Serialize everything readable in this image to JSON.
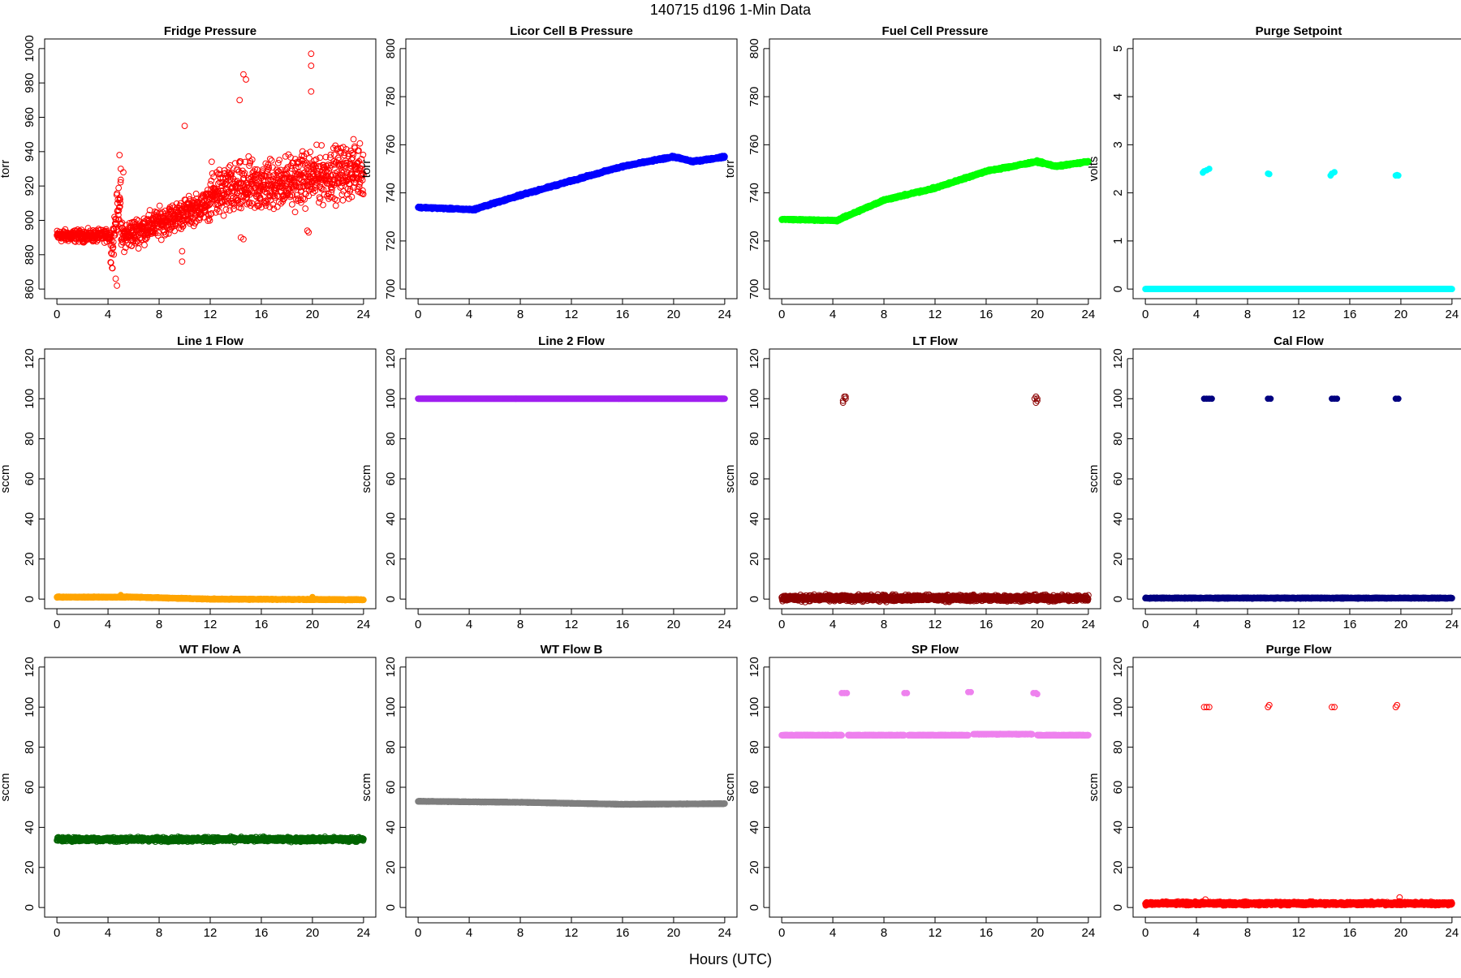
{
  "page": {
    "title": "140715   d196   1-Min Data",
    "xlabel": "Hours (UTC)"
  },
  "chart_data": [
    {
      "type": "scatter",
      "title": "Fridge Pressure",
      "ylabel": "torr",
      "xlim": [
        0,
        24
      ],
      "ylim": [
        860,
        1000
      ],
      "xticks": [
        "0",
        "4",
        "8",
        "12",
        "16",
        "20",
        "24"
      ],
      "yticks": [
        "860",
        "880",
        "900",
        "920",
        "940",
        "960",
        "980",
        "1000"
      ],
      "series": [
        {
          "color": "#ff0000",
          "style": "open",
          "segments": [
            {
              "x": [
                0,
                4.2
              ],
              "y": [
                891,
                891
              ],
              "jitter": 5
            },
            {
              "x": [
                4.2,
                5.0
              ],
              "y": [
                880,
                918
              ],
              "jitter": 16
            },
            {
              "x": [
                5.0,
                12.0
              ],
              "y": [
                890,
                910
              ],
              "jitter": 12
            },
            {
              "x": [
                12.0,
                24.0
              ],
              "y": [
                915,
                930
              ],
              "jitter": 22
            }
          ],
          "points": [
            [
              4.9,
              938
            ],
            [
              5.0,
              930
            ],
            [
              5.2,
              928
            ],
            [
              4.6,
              866
            ],
            [
              4.7,
              862
            ],
            [
              9.8,
              876
            ],
            [
              9.8,
              882
            ],
            [
              10.0,
              955
            ],
            [
              14.4,
              890
            ],
            [
              14.6,
              889
            ],
            [
              14.3,
              970
            ],
            [
              14.6,
              985
            ],
            [
              14.8,
              982
            ],
            [
              19.6,
              894
            ],
            [
              19.7,
              893
            ],
            [
              19.9,
              997
            ],
            [
              19.9,
              990
            ],
            [
              19.9,
              975
            ]
          ]
        }
      ]
    },
    {
      "type": "scatter",
      "title": "Licor Cell B Pressure",
      "ylabel": "torr",
      "xlim": [
        0,
        24
      ],
      "ylim": [
        700,
        800
      ],
      "xticks": [
        "0",
        "4",
        "8",
        "12",
        "16",
        "20",
        "24"
      ],
      "yticks": [
        "700",
        "720",
        "740",
        "760",
        "780",
        "800"
      ],
      "series": [
        {
          "color": "#0000ff",
          "style": "filled",
          "segments": [
            {
              "x": [
                0,
                4.3
              ],
              "y": [
                734,
                733
              ],
              "jitter": 0.5
            },
            {
              "x": [
                4.3,
                8
              ],
              "y": [
                733,
                739
              ],
              "jitter": 0.6
            },
            {
              "x": [
                8,
                12
              ],
              "y": [
                739,
                745
              ],
              "jitter": 0.6
            },
            {
              "x": [
                12,
                16
              ],
              "y": [
                745,
                751
              ],
              "jitter": 0.6
            },
            {
              "x": [
                16,
                20
              ],
              "y": [
                751,
                755
              ],
              "jitter": 0.6
            },
            {
              "x": [
                20,
                21.5
              ],
              "y": [
                755,
                753
              ],
              "jitter": 0.6
            },
            {
              "x": [
                21.5,
                24
              ],
              "y": [
                753,
                755
              ],
              "jitter": 0.6
            }
          ],
          "points": []
        }
      ]
    },
    {
      "type": "scatter",
      "title": "Fuel Cell Pressure",
      "ylabel": "torr",
      "xlim": [
        0,
        24
      ],
      "ylim": [
        700,
        800
      ],
      "xticks": [
        "0",
        "4",
        "8",
        "12",
        "16",
        "20",
        "24"
      ],
      "yticks": [
        "700",
        "720",
        "740",
        "760",
        "780",
        "800"
      ],
      "series": [
        {
          "color": "#00ff00",
          "style": "filled",
          "segments": [
            {
              "x": [
                0,
                4.3
              ],
              "y": [
                729,
                728.5
              ],
              "jitter": 0.4
            },
            {
              "x": [
                4.3,
                8
              ],
              "y": [
                728.5,
                737
              ],
              "jitter": 0.6
            },
            {
              "x": [
                8,
                12
              ],
              "y": [
                737,
                742
              ],
              "jitter": 0.6
            },
            {
              "x": [
                12,
                16
              ],
              "y": [
                742,
                749
              ],
              "jitter": 0.6
            },
            {
              "x": [
                16,
                20
              ],
              "y": [
                749,
                753
              ],
              "jitter": 0.6
            },
            {
              "x": [
                20,
                21.5
              ],
              "y": [
                753,
                751
              ],
              "jitter": 0.6
            },
            {
              "x": [
                21.5,
                24
              ],
              "y": [
                751,
                753
              ],
              "jitter": 0.6
            }
          ],
          "points": []
        }
      ]
    },
    {
      "type": "scatter",
      "title": "Purge Setpoint",
      "ylabel": "volts",
      "xlim": [
        0,
        24
      ],
      "ylim": [
        0,
        5
      ],
      "xticks": [
        "0",
        "4",
        "8",
        "12",
        "16",
        "20",
        "24"
      ],
      "yticks": [
        "0",
        "1",
        "2",
        "3",
        "4",
        "5"
      ],
      "series": [
        {
          "color": "#00ffff",
          "style": "filled",
          "segments": [
            {
              "x": [
                0,
                24
              ],
              "y": [
                0,
                0
              ],
              "jitter": 0
            }
          ],
          "points": [
            [
              4.5,
              2.42
            ],
            [
              4.6,
              2.45
            ],
            [
              4.8,
              2.47
            ],
            [
              5.0,
              2.5
            ],
            [
              9.6,
              2.4
            ],
            [
              9.7,
              2.39
            ],
            [
              14.5,
              2.36
            ],
            [
              14.6,
              2.4
            ],
            [
              14.8,
              2.43
            ],
            [
              19.6,
              2.36
            ],
            [
              19.7,
              2.37
            ],
            [
              19.8,
              2.36
            ]
          ]
        }
      ]
    },
    {
      "type": "scatter",
      "title": "Line 1 Flow",
      "ylabel": "sccm",
      "xlim": [
        0,
        24
      ],
      "ylim": [
        0,
        120
      ],
      "xticks": [
        "0",
        "4",
        "8",
        "12",
        "16",
        "20",
        "24"
      ],
      "yticks": [
        "0",
        "20",
        "40",
        "60",
        "80",
        "100",
        "120"
      ],
      "series": [
        {
          "color": "#ffa500",
          "style": "filled",
          "segments": [
            {
              "x": [
                0,
                6
              ],
              "y": [
                1,
                1
              ],
              "jitter": 0.3
            },
            {
              "x": [
                6,
                12
              ],
              "y": [
                1,
                0
              ],
              "jitter": 0.3
            },
            {
              "x": [
                12,
                24
              ],
              "y": [
                0,
                -0.3
              ],
              "jitter": 0.3
            }
          ],
          "points": [
            [
              5.0,
              2
            ],
            [
              20.0,
              1
            ]
          ]
        }
      ]
    },
    {
      "type": "scatter",
      "title": "Line 2 Flow",
      "ylabel": "sccm",
      "xlim": [
        0,
        24
      ],
      "ylim": [
        0,
        120
      ],
      "xticks": [
        "0",
        "4",
        "8",
        "12",
        "16",
        "20",
        "24"
      ],
      "yticks": [
        "0",
        "20",
        "40",
        "60",
        "80",
        "100",
        "120"
      ],
      "series": [
        {
          "color": "#a020f0",
          "style": "filled",
          "segments": [
            {
              "x": [
                0,
                24
              ],
              "y": [
                100,
                100
              ],
              "jitter": 0
            }
          ],
          "points": []
        }
      ]
    },
    {
      "type": "scatter",
      "title": "LT Flow",
      "ylabel": "sccm",
      "xlim": [
        0,
        24
      ],
      "ylim": [
        0,
        120
      ],
      "xticks": [
        "0",
        "4",
        "8",
        "12",
        "16",
        "20",
        "24"
      ],
      "yticks": [
        "0",
        "20",
        "40",
        "60",
        "80",
        "100",
        "120"
      ],
      "series": [
        {
          "color": "#8b0000",
          "style": "open",
          "segments": [
            {
              "x": [
                0,
                24
              ],
              "y": [
                0.5,
                0.5
              ],
              "jitter": 2.2
            }
          ],
          "points": [
            [
              4.8,
              99
            ],
            [
              4.9,
              101
            ],
            [
              5.0,
              100
            ],
            [
              4.8,
              98
            ],
            [
              5.0,
              101
            ],
            [
              19.8,
              100
            ],
            [
              19.9,
              101
            ],
            [
              20.0,
              99
            ],
            [
              19.9,
              98
            ],
            [
              20.0,
              100
            ]
          ]
        }
      ]
    },
    {
      "type": "scatter",
      "title": "Cal Flow",
      "ylabel": "sccm",
      "xlim": [
        0,
        24
      ],
      "ylim": [
        0,
        120
      ],
      "xticks": [
        "0",
        "4",
        "8",
        "12",
        "16",
        "20",
        "24"
      ],
      "yticks": [
        "0",
        "20",
        "40",
        "60",
        "80",
        "100",
        "120"
      ],
      "series": [
        {
          "color": "#000080",
          "style": "filled",
          "segments": [
            {
              "x": [
                0,
                24
              ],
              "y": [
                0.5,
                0.5
              ],
              "jitter": 0.3
            }
          ],
          "points": [
            [
              4.6,
              100
            ],
            [
              4.8,
              100
            ],
            [
              5.0,
              100
            ],
            [
              5.2,
              100
            ],
            [
              9.6,
              100
            ],
            [
              9.8,
              100
            ],
            [
              14.6,
              100
            ],
            [
              14.8,
              100
            ],
            [
              15.0,
              100
            ],
            [
              19.6,
              100
            ],
            [
              19.8,
              100
            ]
          ]
        }
      ]
    },
    {
      "type": "scatter",
      "title": "WT Flow A",
      "ylabel": "sccm",
      "xlim": [
        0,
        24
      ],
      "ylim": [
        0,
        120
      ],
      "xticks": [
        "0",
        "4",
        "8",
        "12",
        "16",
        "20",
        "24"
      ],
      "yticks": [
        "0",
        "20",
        "40",
        "60",
        "80",
        "100",
        "120"
      ],
      "series": [
        {
          "color": "#006400",
          "style": "open",
          "segments": [
            {
              "x": [
                0,
                24
              ],
              "y": [
                34,
                34
              ],
              "jitter": 1.5
            }
          ],
          "points": []
        }
      ]
    },
    {
      "type": "scatter",
      "title": "WT Flow B",
      "ylabel": "sccm",
      "xlim": [
        0,
        24
      ],
      "ylim": [
        0,
        120
      ],
      "xticks": [
        "0",
        "4",
        "8",
        "12",
        "16",
        "20",
        "24"
      ],
      "yticks": [
        "0",
        "20",
        "40",
        "60",
        "80",
        "100",
        "120"
      ],
      "series": [
        {
          "color": "#7f7f7f",
          "style": "filled",
          "segments": [
            {
              "x": [
                0,
                8
              ],
              "y": [
                53,
                52.5
              ],
              "jitter": 0.2
            },
            {
              "x": [
                8,
                16
              ],
              "y": [
                52.5,
                51.5
              ],
              "jitter": 0.2
            },
            {
              "x": [
                16,
                24
              ],
              "y": [
                51.5,
                51.8
              ],
              "jitter": 0.2
            }
          ],
          "points": []
        }
      ]
    },
    {
      "type": "scatter",
      "title": "SP Flow",
      "ylabel": "sccm",
      "xlim": [
        0,
        24
      ],
      "ylim": [
        0,
        120
      ],
      "xticks": [
        "0",
        "4",
        "8",
        "12",
        "16",
        "20",
        "24"
      ],
      "yticks": [
        "0",
        "20",
        "40",
        "60",
        "80",
        "100",
        "120"
      ],
      "series": [
        {
          "color": "#ee82ee",
          "style": "filled",
          "segments": [
            {
              "x": [
                0,
                4.7
              ],
              "y": [
                86,
                86
              ],
              "jitter": 0.2
            },
            {
              "x": [
                5.2,
                9.6
              ],
              "y": [
                86,
                86
              ],
              "jitter": 0.2
            },
            {
              "x": [
                9.9,
                14.6
              ],
              "y": [
                86,
                86
              ],
              "jitter": 0.2
            },
            {
              "x": [
                15.0,
                19.6
              ],
              "y": [
                86.5,
                86.5
              ],
              "jitter": 0.2
            },
            {
              "x": [
                20.0,
                24
              ],
              "y": [
                86,
                86
              ],
              "jitter": 0.2
            }
          ],
          "points": [
            [
              4.7,
              107
            ],
            [
              4.9,
              107
            ],
            [
              5.1,
              107
            ],
            [
              9.6,
              107
            ],
            [
              9.8,
              107
            ],
            [
              14.6,
              107.5
            ],
            [
              14.8,
              107.5
            ],
            [
              19.7,
              107
            ],
            [
              19.9,
              107
            ],
            [
              20.0,
              106.5
            ]
          ]
        }
      ]
    },
    {
      "type": "scatter",
      "title": "Purge Flow",
      "ylabel": "sccm",
      "xlim": [
        0,
        24
      ],
      "ylim": [
        0,
        120
      ],
      "xticks": [
        "0",
        "4",
        "8",
        "12",
        "16",
        "20",
        "24"
      ],
      "yticks": [
        "0",
        "20",
        "40",
        "60",
        "80",
        "100",
        "120"
      ],
      "series": [
        {
          "color": "#ff0000",
          "style": "open",
          "segments": [
            {
              "x": [
                0,
                24
              ],
              "y": [
                2,
                2
              ],
              "jitter": 1.2
            }
          ],
          "points": [
            [
              4.6,
              100
            ],
            [
              4.8,
              100
            ],
            [
              5.0,
              100
            ],
            [
              9.6,
              100
            ],
            [
              9.7,
              101
            ],
            [
              14.6,
              100
            ],
            [
              14.8,
              100
            ],
            [
              19.6,
              100
            ],
            [
              19.7,
              101
            ],
            [
              4.7,
              4
            ],
            [
              19.9,
              5
            ]
          ]
        }
      ]
    }
  ]
}
